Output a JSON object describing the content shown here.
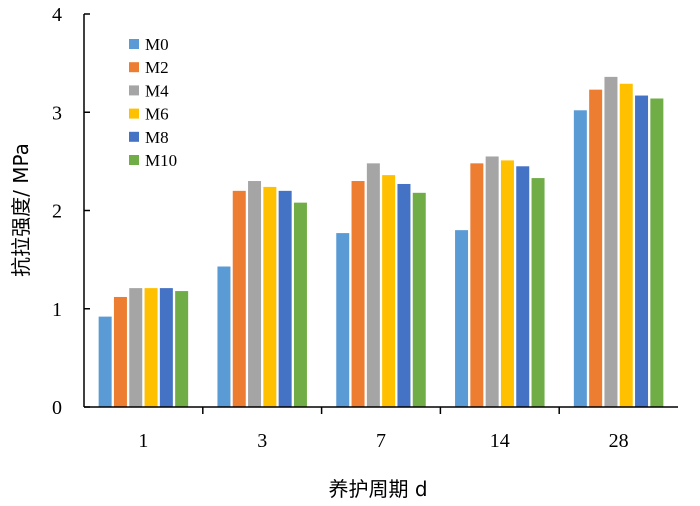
{
  "chart_data": {
    "type": "bar",
    "xlabel": "养护周期 d",
    "ylabel": "抗拉强度/ MPa",
    "categories": [
      "1",
      "3",
      "7",
      "14",
      "28"
    ],
    "ylim": [
      0,
      4
    ],
    "yticks": [
      "0",
      "1",
      "2",
      "3",
      "4"
    ],
    "grid": false,
    "legend": "top-left",
    "series": [
      {
        "name": "M0",
        "color": "#5B9BD5",
        "values": [
          0.92,
          1.43,
          1.77,
          1.8,
          3.02
        ]
      },
      {
        "name": "M2",
        "color": "#ED7D31",
        "values": [
          1.12,
          2.2,
          2.3,
          2.48,
          3.23
        ]
      },
      {
        "name": "M4",
        "color": "#A5A5A5",
        "values": [
          1.21,
          2.3,
          2.48,
          2.55,
          3.36
        ]
      },
      {
        "name": "M6",
        "color": "#FFC000",
        "values": [
          1.21,
          2.24,
          2.36,
          2.51,
          3.29
        ]
      },
      {
        "name": "M8",
        "color": "#4472C4",
        "values": [
          1.21,
          2.2,
          2.27,
          2.45,
          3.17
        ]
      },
      {
        "name": "M10",
        "color": "#70AD47",
        "values": [
          1.18,
          2.08,
          2.18,
          2.33,
          3.14
        ]
      }
    ]
  }
}
